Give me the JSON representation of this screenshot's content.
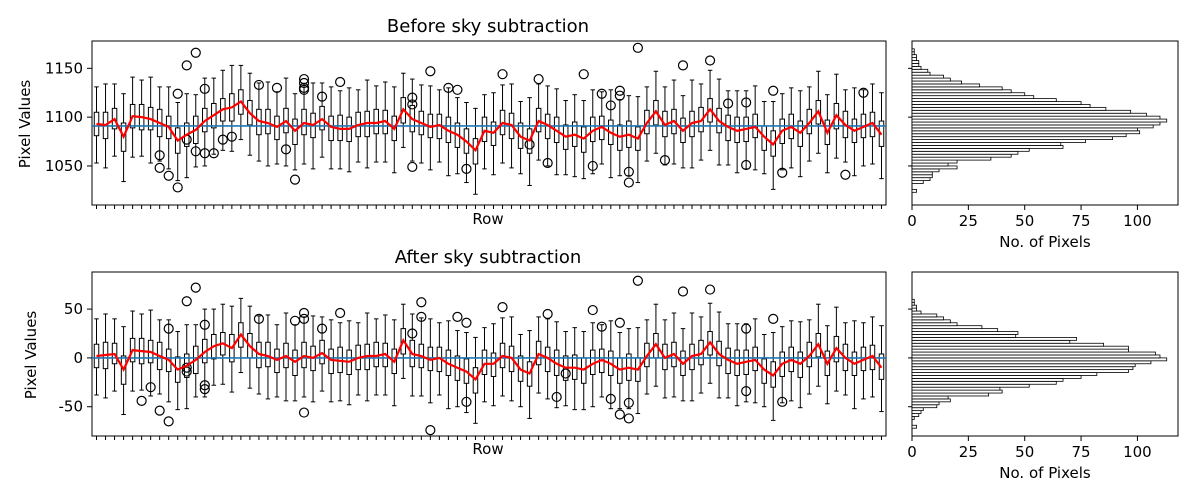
{
  "figure_title": "",
  "chart_data": [
    {
      "type": "box",
      "title": "Before sky subtraction",
      "xlabel": "Row",
      "ylabel": "Pixel Values",
      "ylim": [
        1010,
        1178
      ],
      "yticks": [
        1050,
        1100,
        1150
      ],
      "reference_line": 1091,
      "reference_color": "#1f77b4",
      "median_color": "#ff0000",
      "n_rows": 88,
      "medians": [
        1093,
        1092,
        1098,
        1080,
        1101,
        1100,
        1098,
        1094,
        1090,
        1076,
        1082,
        1087,
        1096,
        1102,
        1108,
        1110,
        1116,
        1104,
        1096,
        1094,
        1090,
        1096,
        1086,
        1094,
        1092,
        1098,
        1090,
        1088,
        1088,
        1092,
        1094,
        1094,
        1096,
        1088,
        1108,
        1098,
        1094,
        1090,
        1092,
        1086,
        1082,
        1075,
        1066,
        1086,
        1084,
        1094,
        1092,
        1080,
        1076,
        1096,
        1092,
        1086,
        1080,
        1082,
        1078,
        1086,
        1090,
        1084,
        1080,
        1082,
        1078,
        1094,
        1106,
        1092,
        1096,
        1086,
        1094,
        1096,
        1108,
        1096,
        1090,
        1086,
        1088,
        1090,
        1080,
        1072,
        1086,
        1090,
        1084,
        1094,
        1106,
        1084,
        1102,
        1092,
        1086,
        1090,
        1094,
        1082
      ],
      "q1_offsets": [
        -12,
        -14,
        -10,
        -15,
        -12,
        -13,
        -11,
        -14,
        -12,
        -13,
        -12,
        -14,
        -11,
        -13,
        -12,
        -14,
        -13,
        -12,
        -14,
        -11,
        -13,
        -12,
        -14,
        -12,
        -13,
        -11,
        -14,
        -12,
        -13,
        -12,
        -14,
        -11,
        -13,
        -12,
        -14,
        -13,
        -12,
        -11,
        -14,
        -12,
        -13,
        -12,
        -14,
        -11,
        -13,
        -12,
        -14,
        -12,
        -13,
        -11,
        -14,
        -12,
        -13,
        -12,
        -14,
        -11,
        -13,
        -12,
        -14,
        -13,
        -12,
        -11,
        -14,
        -12,
        -13,
        -12,
        -14,
        -11,
        -13,
        -12,
        -14,
        -12,
        -13,
        -11,
        -14,
        -12,
        -13,
        -12,
        -14,
        -11,
        -13,
        -12,
        -14,
        -13,
        -12,
        -11,
        -14,
        -12
      ],
      "q3_offsets": [
        12,
        13,
        11,
        14,
        12,
        13,
        12,
        14,
        11,
        13,
        12,
        14,
        13,
        12,
        11,
        14,
        12,
        13,
        12,
        14,
        11,
        13,
        12,
        14,
        12,
        13,
        11,
        14,
        12,
        13,
        12,
        14,
        11,
        13,
        12,
        14,
        12,
        13,
        11,
        14,
        12,
        13,
        12,
        14,
        11,
        13,
        12,
        14,
        12,
        13,
        11,
        14,
        12,
        13,
        12,
        14,
        11,
        13,
        12,
        14,
        12,
        13,
        11,
        14,
        12,
        13,
        12,
        14,
        11,
        13,
        12,
        14,
        12,
        13,
        11,
        14,
        12,
        13,
        12,
        14,
        11,
        13,
        12,
        14,
        12,
        13,
        11,
        14
      ],
      "whisker_low_offsets": [
        -40,
        -44,
        -38,
        -46,
        -42,
        -40,
        -45,
        -39,
        -43,
        -41,
        -44,
        -38,
        -46,
        -40,
        -42,
        -45,
        -39,
        -43,
        -41,
        -44,
        -38,
        -46,
        -40,
        -42,
        -45,
        -39,
        -43,
        -41,
        -44,
        -38,
        -46,
        -40,
        -42,
        -45,
        -39,
        -43,
        -41,
        -44,
        -38,
        -46,
        -40,
        -42,
        -45,
        -39,
        -43,
        -41,
        -44,
        -38,
        -46,
        -40,
        -42,
        -45,
        -39,
        -43,
        -41,
        -44,
        -38,
        -46,
        -40,
        -42,
        -45,
        -39,
        -43,
        -41,
        -44,
        -38,
        -46,
        -40,
        -42,
        -45,
        -39,
        -43,
        -41,
        -44,
        -38,
        -46,
        -40,
        -42,
        -45,
        -39,
        -43,
        -41,
        -44,
        -38,
        -46,
        -40,
        -42,
        -45
      ],
      "whisker_high_offsets": [
        38,
        42,
        36,
        44,
        40,
        38,
        43,
        37,
        41,
        39,
        42,
        36,
        44,
        38,
        40,
        43,
        37,
        41,
        39,
        42,
        36,
        44,
        38,
        40,
        43,
        37,
        41,
        39,
        42,
        36,
        44,
        38,
        40,
        43,
        37,
        41,
        39,
        42,
        36,
        44,
        38,
        40,
        43,
        37,
        41,
        39,
        42,
        36,
        44,
        38,
        40,
        43,
        37,
        41,
        39,
        42,
        36,
        44,
        38,
        40,
        43,
        37,
        41,
        39,
        42,
        36,
        44,
        38,
        40,
        43,
        37,
        41,
        39,
        42,
        36,
        44,
        38,
        40,
        43,
        37,
        41,
        39,
        42,
        36,
        44,
        38,
        40,
        43
      ],
      "outliers": [
        [
          7,
          1061
        ],
        [
          8,
          1040
        ],
        [
          9,
          1124
        ],
        [
          9,
          1028
        ],
        [
          10,
          1153
        ],
        [
          10,
          1077
        ],
        [
          11,
          1166
        ],
        [
          11,
          1065
        ],
        [
          12,
          1129
        ],
        [
          12,
          1063
        ],
        [
          18,
          1133
        ],
        [
          20,
          1130
        ],
        [
          21,
          1067
        ],
        [
          22,
          1036
        ],
        [
          23,
          1139
        ],
        [
          23,
          1130
        ],
        [
          23,
          1128
        ],
        [
          25,
          1121
        ],
        [
          27,
          1136
        ],
        [
          35,
          1049
        ],
        [
          35,
          1113
        ],
        [
          35,
          1120
        ],
        [
          37,
          1147
        ],
        [
          39,
          1130
        ],
        [
          40,
          1128
        ],
        [
          41,
          1047
        ],
        [
          45,
          1144
        ],
        [
          49,
          1139
        ],
        [
          50,
          1053
        ],
        [
          54,
          1144
        ],
        [
          55,
          1050
        ],
        [
          56,
          1124
        ],
        [
          57,
          1112
        ],
        [
          58,
          1122
        ],
        [
          58,
          1127
        ],
        [
          59,
          1033
        ],
        [
          59,
          1044
        ],
        [
          60,
          1171
        ],
        [
          65,
          1153
        ],
        [
          68,
          1158
        ],
        [
          72,
          1115
        ],
        [
          72,
          1051
        ],
        [
          75,
          1127
        ],
        [
          76,
          1043
        ],
        [
          23,
          1135
        ],
        [
          7,
          1048
        ],
        [
          13,
          1063
        ],
        [
          14,
          1077
        ],
        [
          15,
          1080
        ],
        [
          48,
          1072
        ],
        [
          63,
          1056
        ],
        [
          70,
          1114
        ],
        [
          83,
          1041
        ],
        [
          85,
          1125
        ]
      ],
      "outliers_rows_note": "",
      "histogram": {
        "xlabel": "No. of Pixels",
        "xticks": [
          0,
          25,
          50,
          75,
          100
        ],
        "xlim": [
          0,
          118
        ],
        "bin_width": 3,
        "bin_start": 1023,
        "counts": [
          2,
          0,
          0,
          5,
          8,
          9,
          9,
          12,
          20,
          16,
          20,
          35,
          44,
          47,
          52,
          67,
          66,
          77,
          89,
          95,
          101,
          100,
          107,
          110,
          113,
          110,
          104,
          97,
          86,
          79,
          75,
          64,
          54,
          50,
          44,
          40,
          30,
          22,
          17,
          14,
          8,
          7,
          4,
          3,
          3,
          2,
          2,
          1,
          1
        ]
      }
    },
    {
      "type": "box",
      "title": "After sky subtraction",
      "xlabel": "Row",
      "ylabel": "Pixel Values",
      "ylim": [
        -80,
        88
      ],
      "yticks": [
        -50,
        0,
        50
      ],
      "reference_line": 0,
      "reference_color": "#1f77b4",
      "median_color": "#ff0000",
      "n_rows": 88,
      "medians": [
        2,
        3,
        4,
        -12,
        8,
        7,
        6,
        2,
        -2,
        -12,
        -8,
        -2,
        6,
        12,
        15,
        10,
        24,
        12,
        4,
        2,
        -2,
        2,
        -4,
        2,
        0,
        5,
        -2,
        -3,
        -4,
        0,
        2,
        2,
        4,
        -4,
        18,
        4,
        2,
        -2,
        0,
        -6,
        -10,
        -14,
        -22,
        -6,
        -6,
        2,
        0,
        -12,
        -16,
        4,
        0,
        -6,
        -10,
        -10,
        -12,
        -6,
        -2,
        -6,
        -12,
        -10,
        -12,
        2,
        14,
        0,
        4,
        -6,
        2,
        4,
        16,
        4,
        -2,
        -6,
        -4,
        -2,
        -12,
        -18,
        -6,
        -2,
        -6,
        2,
        14,
        -6,
        10,
        0,
        -6,
        -2,
        2,
        -10
      ],
      "q1_offsets": [
        -12,
        -14,
        -10,
        -15,
        -12,
        -13,
        -11,
        -14,
        -12,
        -13,
        -12,
        -14,
        -11,
        -13,
        -12,
        -14,
        -13,
        -12,
        -14,
        -11,
        -13,
        -12,
        -14,
        -12,
        -13,
        -11,
        -14,
        -12,
        -13,
        -12,
        -14,
        -11,
        -13,
        -12,
        -14,
        -13,
        -12,
        -11,
        -14,
        -12,
        -13,
        -12,
        -14,
        -11,
        -13,
        -12,
        -14,
        -12,
        -13,
        -11,
        -14,
        -12,
        -13,
        -12,
        -14,
        -11,
        -13,
        -12,
        -14,
        -13,
        -12,
        -11,
        -14,
        -12,
        -13,
        -12,
        -14,
        -11,
        -13,
        -12,
        -14,
        -12,
        -13,
        -11,
        -14,
        -12,
        -13,
        -12,
        -14,
        -11,
        -13,
        -12,
        -14,
        -13,
        -12,
        -11,
        -14,
        -12
      ],
      "q3_offsets": [
        12,
        13,
        11,
        14,
        12,
        13,
        12,
        14,
        11,
        13,
        12,
        14,
        13,
        12,
        11,
        14,
        12,
        13,
        12,
        14,
        11,
        13,
        12,
        14,
        12,
        13,
        11,
        14,
        12,
        13,
        12,
        14,
        11,
        13,
        12,
        14,
        12,
        13,
        11,
        14,
        12,
        13,
        12,
        14,
        11,
        13,
        12,
        14,
        12,
        13,
        11,
        14,
        12,
        13,
        12,
        14,
        11,
        13,
        12,
        14,
        12,
        13,
        11,
        14,
        12,
        13,
        12,
        14,
        11,
        13,
        12,
        14,
        12,
        13,
        11,
        14,
        12,
        13,
        12,
        14,
        11,
        13,
        12,
        14,
        12,
        13,
        11,
        14
      ],
      "whisker_low_offsets": [
        -40,
        -44,
        -38,
        -46,
        -42,
        -40,
        -45,
        -39,
        -43,
        -41,
        -44,
        -38,
        -46,
        -40,
        -42,
        -45,
        -39,
        -43,
        -41,
        -44,
        -38,
        -46,
        -40,
        -42,
        -45,
        -39,
        -43,
        -41,
        -44,
        -38,
        -46,
        -40,
        -42,
        -45,
        -39,
        -43,
        -41,
        -44,
        -38,
        -46,
        -40,
        -42,
        -45,
        -39,
        -43,
        -41,
        -44,
        -38,
        -46,
        -40,
        -42,
        -45,
        -39,
        -43,
        -41,
        -44,
        -38,
        -46,
        -40,
        -42,
        -45,
        -39,
        -43,
        -41,
        -44,
        -38,
        -46,
        -40,
        -42,
        -45,
        -39,
        -43,
        -41,
        -44,
        -38,
        -46,
        -40,
        -42,
        -45,
        -39,
        -43,
        -41,
        -44,
        -38,
        -46,
        -40,
        -42,
        -45
      ],
      "whisker_high_offsets": [
        38,
        42,
        36,
        44,
        40,
        38,
        43,
        37,
        41,
        39,
        42,
        36,
        44,
        38,
        40,
        43,
        37,
        41,
        39,
        42,
        36,
        44,
        38,
        40,
        43,
        37,
        41,
        39,
        42,
        36,
        44,
        38,
        40,
        43,
        37,
        41,
        39,
        42,
        36,
        44,
        38,
        40,
        43,
        37,
        41,
        39,
        42,
        36,
        44,
        38,
        40,
        43,
        37,
        41,
        39,
        42,
        36,
        44,
        38,
        40,
        43,
        37,
        41,
        39,
        42,
        36,
        44,
        38,
        40,
        43,
        37,
        41,
        39,
        42,
        36,
        44,
        38,
        40,
        43,
        37,
        41,
        39,
        42,
        36,
        44,
        38,
        40,
        43
      ],
      "outliers": [
        [
          5,
          -44
        ],
        [
          6,
          -30
        ],
        [
          7,
          -54
        ],
        [
          8,
          30
        ],
        [
          8,
          -65
        ],
        [
          10,
          58
        ],
        [
          10,
          -14
        ],
        [
          10,
          -10
        ],
        [
          11,
          72
        ],
        [
          12,
          34
        ],
        [
          12,
          -28
        ],
        [
          12,
          -32
        ],
        [
          18,
          40
        ],
        [
          22,
          38
        ],
        [
          23,
          -56
        ],
        [
          23,
          46
        ],
        [
          23,
          40
        ],
        [
          25,
          30
        ],
        [
          27,
          46
        ],
        [
          35,
          25
        ],
        [
          36,
          57
        ],
        [
          36,
          42
        ],
        [
          37,
          -74
        ],
        [
          40,
          42
        ],
        [
          41,
          36
        ],
        [
          41,
          -45
        ],
        [
          45,
          52
        ],
        [
          50,
          45
        ],
        [
          51,
          -40
        ],
        [
          52,
          -16
        ],
        [
          55,
          49
        ],
        [
          56,
          32
        ],
        [
          57,
          -42
        ],
        [
          58,
          36
        ],
        [
          58,
          -58
        ],
        [
          59,
          -46
        ],
        [
          59,
          -62
        ],
        [
          60,
          79
        ],
        [
          65,
          68
        ],
        [
          68,
          70
        ],
        [
          72,
          30
        ],
        [
          72,
          -34
        ],
        [
          75,
          40
        ],
        [
          76,
          -45
        ]
      ],
      "histogram": {
        "xlabel": "No. of Pixels",
        "xticks": [
          0,
          25,
          50,
          75,
          100
        ],
        "xlim": [
          0,
          118
        ],
        "bin_width": 3,
        "bin_start": -72,
        "counts": [
          2,
          0,
          0,
          1,
          3,
          4,
          5,
          11,
          12,
          17,
          16,
          34,
          40,
          39,
          52,
          64,
          67,
          75,
          82,
          96,
          98,
          99,
          106,
          113,
          110,
          108,
          96,
          96,
          85,
          70,
          73,
          46,
          47,
          38,
          31,
          20,
          17,
          14,
          11,
          4,
          2,
          2,
          1,
          1
        ]
      }
    }
  ]
}
